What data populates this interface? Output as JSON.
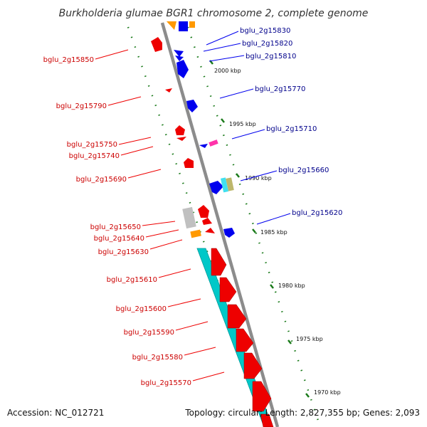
{
  "title": "Burkholderia glumae BGR1 chromosome 2, complete genome",
  "accession": "Accession: NC_012721",
  "summary": "Topology: circular; Length: 2,827,355 bp; Genes: 2,093",
  "scale_ticks": [
    {
      "kbp": 2000,
      "label": "2000 kbp"
    },
    {
      "kbp": 1995,
      "label": "1995 kbp"
    },
    {
      "kbp": 1990,
      "label": "1990 kbp"
    },
    {
      "kbp": 1985,
      "label": "1985 kbp"
    },
    {
      "kbp": 1980,
      "label": "1980 kbp"
    },
    {
      "kbp": 1975,
      "label": "1975 kbp"
    },
    {
      "kbp": 1970,
      "label": "1970 kbp"
    }
  ],
  "genes_forward": [
    {
      "name": "bglu_2g15830"
    },
    {
      "name": "bglu_2g15820"
    },
    {
      "name": "bglu_2g15810"
    },
    {
      "name": "bglu_2g15770"
    },
    {
      "name": "bglu_2g15710"
    },
    {
      "name": "bglu_2g15660"
    },
    {
      "name": "bglu_2g15620"
    }
  ],
  "genes_reverse": [
    {
      "name": "bglu_2g15850"
    },
    {
      "name": "bglu_2g15790"
    },
    {
      "name": "bglu_2g15750"
    },
    {
      "name": "bglu_2g15740"
    },
    {
      "name": "bglu_2g15690"
    },
    {
      "name": "bglu_2g15650"
    },
    {
      "name": "bglu_2g15640"
    },
    {
      "name": "bglu_2g15630"
    },
    {
      "name": "bglu_2g15610"
    },
    {
      "name": "bglu_2g15600"
    },
    {
      "name": "bglu_2g15590"
    },
    {
      "name": "bglu_2g15580"
    },
    {
      "name": "bglu_2g15570"
    }
  ],
  "colors": {
    "forward_strand": "#0000ee",
    "reverse_strand": "#ee0000",
    "forward_label": "#00008b",
    "reverse_label": "#cc0000",
    "backbone": "#808080",
    "scale_dots": "#1a7a1a",
    "rna_orange": "#ff9900",
    "misc_cyan": "#00c8c8",
    "misc_magenta": "#ff33aa",
    "pseudo_gray": "#c0c0c0",
    "pseudo_khaki": "#bdb76b",
    "light_blue": "#40c0f0"
  }
}
